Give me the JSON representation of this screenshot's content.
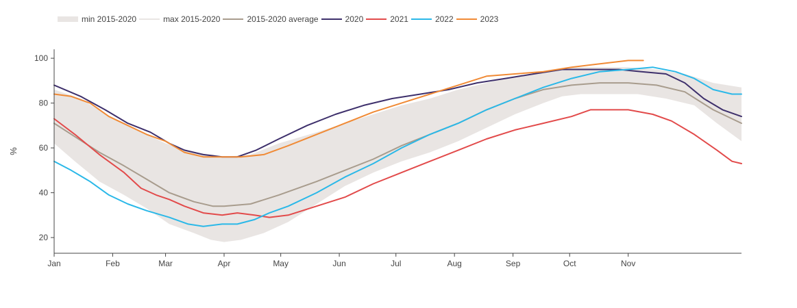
{
  "chart_data": {
    "type": "line",
    "ylabel": "%",
    "ylim": [
      13,
      104
    ],
    "yticks": [
      20,
      40,
      60,
      80,
      100
    ],
    "xlim": [
      1,
      365
    ],
    "xticks": [
      {
        "label": "Jan",
        "day": 1
      },
      {
        "label": "Feb",
        "day": 32
      },
      {
        "label": "Mar",
        "day": 60
      },
      {
        "label": "Apr",
        "day": 91
      },
      {
        "label": "May",
        "day": 121
      },
      {
        "label": "Jun",
        "day": 152
      },
      {
        "label": "Jul",
        "day": 182
      },
      {
        "label": "Aug",
        "day": 213
      },
      {
        "label": "Sep",
        "day": 244
      },
      {
        "label": "Oct",
        "day": 274
      },
      {
        "label": "Nov",
        "day": 305
      }
    ],
    "legend_position": "top-left",
    "band": {
      "name_min": "min 2015-2020",
      "name_max": "max 2015-2020",
      "color": "#e9e5e3",
      "min": [
        [
          1,
          62
        ],
        [
          12,
          54
        ],
        [
          25,
          45
        ],
        [
          38,
          39
        ],
        [
          50,
          33
        ],
        [
          62,
          26
        ],
        [
          75,
          22
        ],
        [
          84,
          19
        ],
        [
          91,
          18
        ],
        [
          100,
          19
        ],
        [
          112,
          22
        ],
        [
          125,
          27
        ],
        [
          140,
          35
        ],
        [
          155,
          43
        ],
        [
          170,
          49
        ],
        [
          185,
          54
        ],
        [
          200,
          58
        ],
        [
          215,
          63
        ],
        [
          230,
          69
        ],
        [
          245,
          75
        ],
        [
          260,
          80
        ],
        [
          270,
          83
        ],
        [
          280,
          84
        ],
        [
          295,
          84
        ],
        [
          310,
          84
        ],
        [
          325,
          82
        ],
        [
          340,
          79
        ],
        [
          352,
          71
        ],
        [
          365,
          63
        ]
      ],
      "max": [
        [
          1,
          86
        ],
        [
          15,
          82
        ],
        [
          30,
          74
        ],
        [
          45,
          68
        ],
        [
          60,
          62
        ],
        [
          75,
          58
        ],
        [
          85,
          57
        ],
        [
          91,
          56
        ],
        [
          105,
          57
        ],
        [
          120,
          62
        ],
        [
          140,
          67
        ],
        [
          155,
          71
        ],
        [
          170,
          75
        ],
        [
          185,
          79
        ],
        [
          200,
          82
        ],
        [
          215,
          86
        ],
        [
          230,
          89
        ],
        [
          245,
          92
        ],
        [
          260,
          94
        ],
        [
          275,
          96
        ],
        [
          290,
          96
        ],
        [
          305,
          96
        ],
        [
          320,
          95
        ],
        [
          335,
          93
        ],
        [
          350,
          89
        ],
        [
          365,
          87
        ]
      ]
    },
    "series": [
      {
        "name": "2015-2020 average",
        "color": "#a89c8d",
        "points": [
          [
            1,
            71
          ],
          [
            12,
            65
          ],
          [
            25,
            58
          ],
          [
            38,
            52
          ],
          [
            50,
            46
          ],
          [
            62,
            40
          ],
          [
            75,
            36
          ],
          [
            85,
            34
          ],
          [
            91,
            34
          ],
          [
            105,
            35
          ],
          [
            120,
            39
          ],
          [
            140,
            45
          ],
          [
            155,
            50
          ],
          [
            170,
            55
          ],
          [
            185,
            61
          ],
          [
            200,
            66
          ],
          [
            215,
            71
          ],
          [
            230,
            77
          ],
          [
            245,
            82
          ],
          [
            260,
            86
          ],
          [
            275,
            88
          ],
          [
            290,
            89
          ],
          [
            305,
            89
          ],
          [
            320,
            88
          ],
          [
            335,
            85
          ],
          [
            350,
            77
          ],
          [
            365,
            71
          ]
        ]
      },
      {
        "name": "2020",
        "color": "#3d2f6b",
        "points": [
          [
            1,
            88
          ],
          [
            15,
            83
          ],
          [
            28,
            77
          ],
          [
            40,
            71
          ],
          [
            52,
            67
          ],
          [
            62,
            62
          ],
          [
            70,
            59
          ],
          [
            80,
            57
          ],
          [
            90,
            56
          ],
          [
            98,
            56
          ],
          [
            108,
            59
          ],
          [
            120,
            64
          ],
          [
            135,
            70
          ],
          [
            150,
            75
          ],
          [
            165,
            79
          ],
          [
            180,
            82
          ],
          [
            195,
            84
          ],
          [
            210,
            86
          ],
          [
            225,
            89
          ],
          [
            240,
            91
          ],
          [
            255,
            93
          ],
          [
            270,
            95
          ],
          [
            285,
            95
          ],
          [
            300,
            95
          ],
          [
            312,
            94
          ],
          [
            325,
            93
          ],
          [
            335,
            89
          ],
          [
            345,
            82
          ],
          [
            355,
            77
          ],
          [
            365,
            74
          ]
        ]
      },
      {
        "name": "2021",
        "color": "#e24a4a",
        "points": [
          [
            1,
            73
          ],
          [
            12,
            66
          ],
          [
            25,
            57
          ],
          [
            38,
            49
          ],
          [
            47,
            42
          ],
          [
            55,
            39
          ],
          [
            62,
            37
          ],
          [
            70,
            34
          ],
          [
            80,
            31
          ],
          [
            90,
            30
          ],
          [
            98,
            31
          ],
          [
            107,
            30
          ],
          [
            115,
            29
          ],
          [
            125,
            30
          ],
          [
            140,
            34
          ],
          [
            155,
            38
          ],
          [
            170,
            44
          ],
          [
            185,
            49
          ],
          [
            200,
            54
          ],
          [
            215,
            59
          ],
          [
            230,
            64
          ],
          [
            245,
            68
          ],
          [
            260,
            71
          ],
          [
            275,
            74
          ],
          [
            285,
            77
          ],
          [
            295,
            77
          ],
          [
            305,
            77
          ],
          [
            318,
            75
          ],
          [
            328,
            72
          ],
          [
            340,
            66
          ],
          [
            352,
            59
          ],
          [
            360,
            54
          ],
          [
            365,
            53
          ]
        ]
      },
      {
        "name": "2022",
        "color": "#2ab8e8",
        "points": [
          [
            1,
            54
          ],
          [
            10,
            50
          ],
          [
            20,
            45
          ],
          [
            30,
            39
          ],
          [
            40,
            35
          ],
          [
            50,
            32
          ],
          [
            62,
            29
          ],
          [
            72,
            26
          ],
          [
            80,
            25
          ],
          [
            90,
            26
          ],
          [
            98,
            26
          ],
          [
            107,
            28
          ],
          [
            115,
            31
          ],
          [
            125,
            34
          ],
          [
            140,
            40
          ],
          [
            155,
            47
          ],
          [
            170,
            53
          ],
          [
            185,
            60
          ],
          [
            200,
            66
          ],
          [
            215,
            71
          ],
          [
            230,
            77
          ],
          [
            245,
            82
          ],
          [
            260,
            87
          ],
          [
            275,
            91
          ],
          [
            290,
            94
          ],
          [
            305,
            95
          ],
          [
            318,
            96
          ],
          [
            330,
            94
          ],
          [
            340,
            91
          ],
          [
            350,
            86
          ],
          [
            360,
            84
          ],
          [
            365,
            84
          ]
        ]
      },
      {
        "name": "2023",
        "color": "#f08a35",
        "points": [
          [
            1,
            84
          ],
          [
            10,
            83
          ],
          [
            20,
            80
          ],
          [
            30,
            74
          ],
          [
            40,
            70
          ],
          [
            50,
            66
          ],
          [
            60,
            63
          ],
          [
            70,
            58
          ],
          [
            80,
            56
          ],
          [
            90,
            56
          ],
          [
            100,
            56
          ],
          [
            112,
            57
          ],
          [
            125,
            61
          ],
          [
            140,
            66
          ],
          [
            155,
            71
          ],
          [
            170,
            76
          ],
          [
            185,
            80
          ],
          [
            200,
            84
          ],
          [
            215,
            88
          ],
          [
            230,
            92
          ],
          [
            245,
            93
          ],
          [
            260,
            94
          ],
          [
            275,
            96
          ],
          [
            285,
            97
          ],
          [
            295,
            98
          ],
          [
            305,
            99
          ],
          [
            313,
            99
          ]
        ]
      }
    ]
  }
}
